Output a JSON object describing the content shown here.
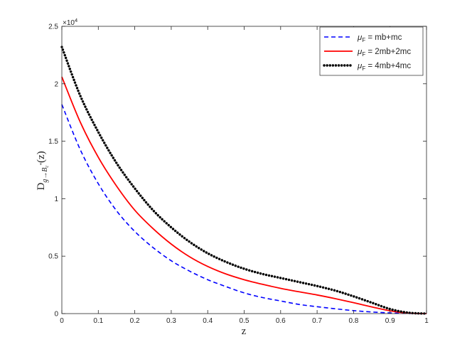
{
  "chart_data": {
    "type": "line",
    "xlabel": "z",
    "ylabel": {
      "main": "D",
      "sub": "g→B",
      "sub_sub": "c",
      "sub_sup": "*",
      "arg": "(z)"
    },
    "xlim": [
      0,
      1
    ],
    "ylim": [
      0,
      25000
    ],
    "x_ticks": [
      0,
      0.1,
      0.2,
      0.3,
      0.4,
      0.5,
      0.6,
      0.7,
      0.8,
      0.9,
      1
    ],
    "x_tick_labels": [
      "0",
      "0.1",
      "0.2",
      "0.3",
      "0.4",
      "0.5",
      "0.6",
      "0.7",
      "0.8",
      "0.9",
      "1"
    ],
    "y_ticks": [
      0,
      5000,
      10000,
      15000,
      20000,
      25000
    ],
    "y_tick_labels": [
      "0",
      "0.5",
      "1",
      "1.5",
      "2",
      "2.5"
    ],
    "y_exponent_label": {
      "base": "×10",
      "exp": "4"
    },
    "grid": false,
    "legend_position": "top-right",
    "x": [
      0,
      0.05,
      0.1,
      0.15,
      0.2,
      0.25,
      0.3,
      0.35,
      0.4,
      0.45,
      0.5,
      0.55,
      0.6,
      0.65,
      0.7,
      0.75,
      0.8,
      0.85,
      0.9,
      0.95,
      1.0
    ],
    "series": [
      {
        "name_sym": "μ",
        "name_sub": "F",
        "name_rest": " = mb+mc",
        "color": "#0000ff",
        "dash": "dashed",
        "values": [
          18200,
          14300,
          11300,
          8950,
          7150,
          5750,
          4600,
          3700,
          2950,
          2350,
          1800,
          1400,
          1100,
          800,
          600,
          420,
          260,
          140,
          60,
          15,
          0
        ]
      },
      {
        "name_sym": "μ",
        "name_sub": "F",
        "name_rest": " = 2mb+2mc",
        "color": "#ff0000",
        "dash": "solid",
        "values": [
          20600,
          16700,
          13600,
          11100,
          9000,
          7400,
          6050,
          4950,
          4100,
          3450,
          2950,
          2550,
          2200,
          1900,
          1620,
          1300,
          950,
          580,
          240,
          40,
          0
        ]
      },
      {
        "name_sym": "μ",
        "name_sub": "F",
        "name_rest": " = 4mb+4mc",
        "color": "#000000",
        "dash": "dotted",
        "values": [
          23200,
          19000,
          15800,
          13100,
          10900,
          9000,
          7500,
          6250,
          5250,
          4500,
          3900,
          3450,
          3100,
          2750,
          2400,
          2000,
          1500,
          950,
          400,
          80,
          0
        ]
      }
    ]
  }
}
